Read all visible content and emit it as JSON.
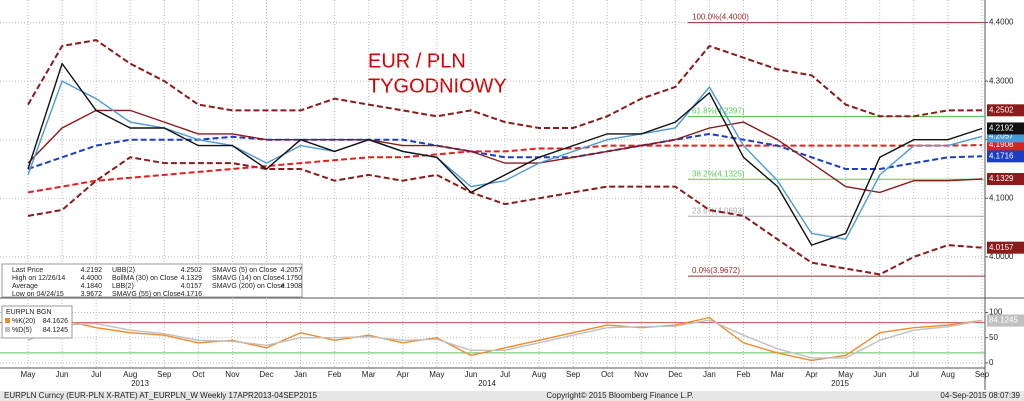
{
  "chart_data": [
    {
      "type": "line",
      "annotation": [
        "EUR / PLN",
        "TYGODNIOWY"
      ],
      "categories": [
        "May",
        "Jun",
        "Jul",
        "Aug",
        "Sep",
        "Oct",
        "Nov",
        "Dec",
        "Jan",
        "Feb",
        "Mar",
        "Apr",
        "May",
        "Jun",
        "Jul",
        "Aug",
        "Sep",
        "Oct",
        "Nov",
        "Dec",
        "Jan",
        "Feb",
        "Mar",
        "Apr",
        "May",
        "Jun",
        "Jul",
        "Aug",
        "Sep"
      ],
      "years": [
        "2013",
        "2014",
        "2015"
      ],
      "ylim": [
        3.94,
        4.43
      ],
      "yticks": [
        {
          "value": 4.0,
          "label": "4.0000"
        },
        {
          "value": 4.1,
          "label": "4.1000"
        },
        {
          "value": 4.2,
          "label": "4.2000"
        },
        {
          "value": 4.3,
          "label": "4.3000"
        },
        {
          "value": 4.4,
          "label": "4.4000"
        }
      ],
      "grid": true,
      "series": [
        {
          "color": "#8b1a1a",
          "dash": true,
          "values": [
            4.26,
            4.36,
            4.37,
            4.33,
            4.3,
            4.26,
            4.25,
            4.25,
            4.25,
            4.27,
            4.26,
            4.25,
            4.24,
            4.25,
            4.23,
            4.22,
            4.22,
            4.24,
            4.27,
            4.29,
            4.36,
            4.34,
            4.32,
            4.31,
            4.26,
            4.24,
            4.24,
            4.25,
            4.2502
          ]
        },
        {
          "color": "#8b1a1a",
          "dash": true,
          "values": [
            4.07,
            4.08,
            4.13,
            4.17,
            4.16,
            4.16,
            4.16,
            4.15,
            4.15,
            4.13,
            4.14,
            4.13,
            4.14,
            4.11,
            4.09,
            4.1,
            4.11,
            4.12,
            4.12,
            4.12,
            4.08,
            4.07,
            4.03,
            3.99,
            3.98,
            3.97,
            4.0,
            4.02,
            4.0157
          ]
        },
        {
          "color": "#e0201e",
          "dash": true,
          "values": [
            4.11,
            4.12,
            4.13,
            4.135,
            4.14,
            4.145,
            4.15,
            4.155,
            4.16,
            4.165,
            4.17,
            4.17,
            4.175,
            4.18,
            4.18,
            4.185,
            4.185,
            4.19,
            4.19,
            4.19,
            4.19,
            4.19,
            4.19,
            4.19,
            4.19,
            4.19,
            4.19,
            4.19,
            4.1908
          ]
        },
        {
          "color": "#1a3fc4",
          "dash": true,
          "values": [
            4.15,
            4.17,
            4.19,
            4.2,
            4.2,
            4.2,
            4.205,
            4.2,
            4.2,
            4.2,
            4.2,
            4.2,
            4.19,
            4.18,
            4.17,
            4.17,
            4.17,
            4.18,
            4.19,
            4.2,
            4.21,
            4.2,
            4.19,
            4.17,
            4.15,
            4.15,
            4.16,
            4.17,
            4.1716
          ]
        },
        {
          "color": "#8b1a1a",
          "dash": false,
          "values": [
            4.16,
            4.22,
            4.25,
            4.25,
            4.23,
            4.21,
            4.21,
            4.2,
            4.2,
            4.2,
            4.2,
            4.19,
            4.19,
            4.18,
            4.16,
            4.16,
            4.17,
            4.18,
            4.19,
            4.2,
            4.22,
            4.23,
            4.2,
            4.16,
            4.12,
            4.11,
            4.13,
            4.13,
            4.1329
          ]
        },
        {
          "color": "#4a9ad8",
          "dash": false,
          "values": [
            4.14,
            4.3,
            4.27,
            4.23,
            4.22,
            4.2,
            4.19,
            4.16,
            4.19,
            4.18,
            4.2,
            4.18,
            4.17,
            4.12,
            4.13,
            4.16,
            4.18,
            4.2,
            4.21,
            4.22,
            4.29,
            4.19,
            4.13,
            4.04,
            4.03,
            4.14,
            4.19,
            4.19,
            4.2057
          ]
        },
        {
          "color": "#111111",
          "dash": false,
          "values": [
            4.15,
            4.33,
            4.25,
            4.22,
            4.22,
            4.19,
            4.19,
            4.15,
            4.2,
            4.18,
            4.2,
            4.18,
            4.17,
            4.11,
            4.14,
            4.17,
            4.19,
            4.21,
            4.21,
            4.23,
            4.28,
            4.17,
            4.12,
            4.02,
            4.04,
            4.17,
            4.2,
            4.2,
            4.2192
          ]
        }
      ],
      "fib": [
        {
          "label": "100.0%(4.4000)",
          "value": 4.4,
          "color": "#9b2d2d"
        },
        {
          "label": "61.8%(4.2397)",
          "value": 4.2397,
          "color": "#5cc85c"
        },
        {
          "label": "38.2%(4.1325)",
          "value": 4.1325,
          "color": "#5cc85c"
        },
        {
          "label": "23.6%(4.0693)",
          "value": 4.0693,
          "color": "#aaaaaa"
        },
        {
          "label": "0.0%(3.9672)",
          "value": 3.9672,
          "color": "#9b2d2d"
        }
      ],
      "legend": [
        [
          "Last Price",
          "4.2192"
        ],
        [
          "High on 12/26/14",
          "4.4000"
        ],
        [
          "Average",
          "4.1840"
        ],
        [
          "Low on 04/24/15",
          "3.9672"
        ],
        [
          "UBB(2)",
          "4.2502"
        ],
        [
          "BollMA (30) on Close",
          "4.1329"
        ],
        [
          "LBB(2)",
          "4.0157"
        ],
        [
          "SMAVG (55) on Close",
          "4.1716"
        ],
        [
          "SMAVG (5) on Close",
          "4.2057"
        ],
        [
          "SMAVG (14) on Close",
          "4.1750"
        ],
        [
          "SMAVG (200) on Close",
          "4.1908"
        ]
      ]
    },
    {
      "type": "line",
      "title": "EURPLN BGN",
      "ylim": [
        -20,
        115
      ],
      "yticks": [
        0,
        50,
        100
      ],
      "levels": [
        {
          "value": 80,
          "color": "#d05050"
        },
        {
          "value": 20,
          "color": "#60c060"
        }
      ],
      "series": [
        {
          "name": "%K(20)",
          "value_label": "84.1626",
          "color": "#f08a2c",
          "values": [
            50,
            85,
            70,
            60,
            55,
            40,
            45,
            30,
            60,
            45,
            55,
            40,
            50,
            15,
            30,
            45,
            60,
            75,
            70,
            75,
            90,
            40,
            20,
            5,
            15,
            60,
            70,
            75,
            84.1626
          ]
        },
        {
          "name": "%D(5)",
          "value_label": "84.1245",
          "color": "#c0c0c0",
          "values": [
            45,
            75,
            78,
            65,
            58,
            45,
            43,
            35,
            50,
            50,
            52,
            45,
            47,
            25,
            25,
            40,
            55,
            70,
            72,
            73,
            85,
            55,
            28,
            10,
            10,
            45,
            65,
            72,
            84.1245
          ]
        }
      ]
    },
    {
      "type": "footer",
      "left": "EURPLN Curncy (EUR-PLN X-RATE) AT_EURPLN_W  Weekly 17APR2013-04SEP2015",
      "center": "Copyright© 2015 Bloomberg Finance L.P.",
      "right": "04-Sep-2015 08:07:39"
    }
  ]
}
